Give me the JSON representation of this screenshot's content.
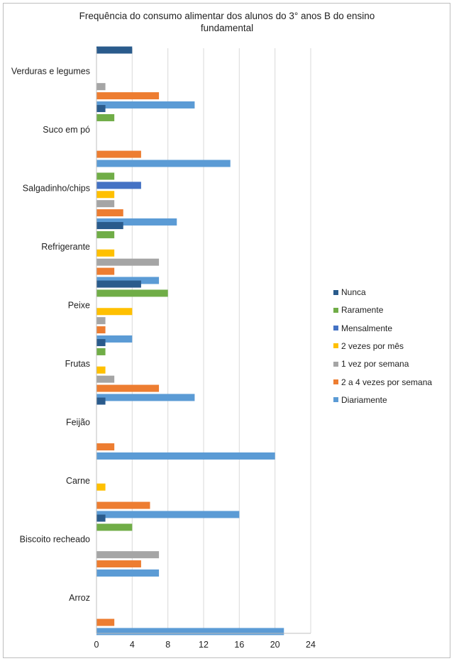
{
  "chart_data": {
    "type": "bar",
    "orientation": "horizontal",
    "title": "Frequência do consumo alimentar dos alunos do 3° anos B do ensino fundamental",
    "title_lines": [
      "Frequência do consumo alimentar dos alunos do 3° anos B do ensino",
      "fundamental"
    ],
    "xlabel": "",
    "ylabel": "",
    "xlim": [
      0,
      24
    ],
    "xticks": [
      "0",
      "4",
      "8",
      "12",
      "16",
      "20",
      "24"
    ],
    "grid": true,
    "legend_position": "right",
    "categories": [
      "Verduras e legumes",
      "Suco em pó",
      "Salgadinho/chips",
      "Refrigerante",
      "Peixe",
      "Frutas",
      "Feijão",
      "Carne",
      "Biscoito recheado",
      "Arroz"
    ],
    "series": [
      {
        "name": "Nunca",
        "color": "#2a5b8c",
        "values": [
          4,
          1,
          0,
          3,
          5,
          1,
          1,
          0,
          1,
          0
        ]
      },
      {
        "name": "Raramente",
        "color": "#70ad47",
        "values": [
          0,
          2,
          2,
          2,
          8,
          1,
          0,
          0,
          4,
          0
        ]
      },
      {
        "name": "Mensalmente",
        "color": "#4472c4",
        "values": [
          0,
          0,
          5,
          0,
          0,
          0,
          0,
          0,
          0,
          0
        ]
      },
      {
        "name": "2 vezes por mês",
        "color": "#ffc000",
        "values": [
          0,
          0,
          2,
          2,
          4,
          1,
          0,
          1,
          0,
          0
        ]
      },
      {
        "name": "1 vez por semana",
        "color": "#a5a5a5",
        "values": [
          1,
          0,
          2,
          7,
          1,
          2,
          0,
          0,
          7,
          0
        ]
      },
      {
        "name": "2 a 4 vezes por semana",
        "color": "#ed7d31",
        "values": [
          7,
          5,
          3,
          2,
          1,
          7,
          2,
          6,
          5,
          2
        ]
      },
      {
        "name": "Diariamente",
        "color": "#5b9bd5",
        "values": [
          11,
          15,
          9,
          7,
          4,
          11,
          20,
          16,
          7,
          21
        ]
      }
    ]
  }
}
